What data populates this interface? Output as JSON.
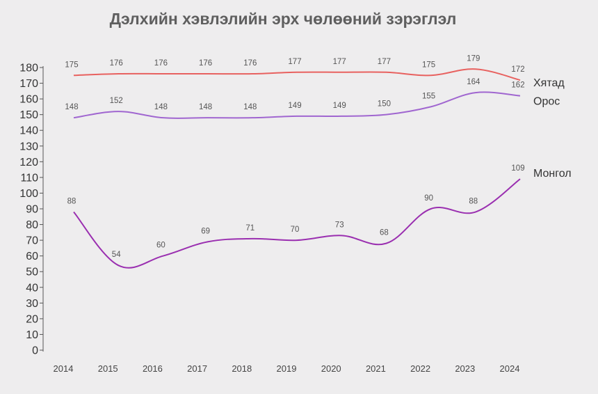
{
  "chart_data": {
    "type": "line",
    "title": "Дэлхийн хэвлэлийн эрх чөлөөний зэрэглэл",
    "xlabel": "",
    "ylabel": "",
    "categories": [
      "2014",
      "2015",
      "2016",
      "2017",
      "2018",
      "2019",
      "2020",
      "2021",
      "2022",
      "2023",
      "2024"
    ],
    "ylim": [
      0,
      180
    ],
    "yticks": [
      0,
      10,
      20,
      30,
      40,
      50,
      60,
      70,
      80,
      90,
      100,
      110,
      120,
      130,
      140,
      150,
      160,
      170,
      180
    ],
    "grid": false,
    "series": [
      {
        "name": "Хятад",
        "color": "#e8615f",
        "values": [
          175,
          176,
          176,
          176,
          176,
          177,
          177,
          177,
          175,
          179,
          172
        ]
      },
      {
        "name": "Орос",
        "color": "#a066d0",
        "values": [
          148,
          152,
          148,
          148,
          148,
          149,
          149,
          150,
          155,
          164,
          162
        ]
      },
      {
        "name": "Монгол",
        "color": "#9a2fb0",
        "values": [
          88,
          54,
          60,
          69,
          71,
          70,
          73,
          68,
          90,
          88,
          109
        ]
      }
    ]
  }
}
